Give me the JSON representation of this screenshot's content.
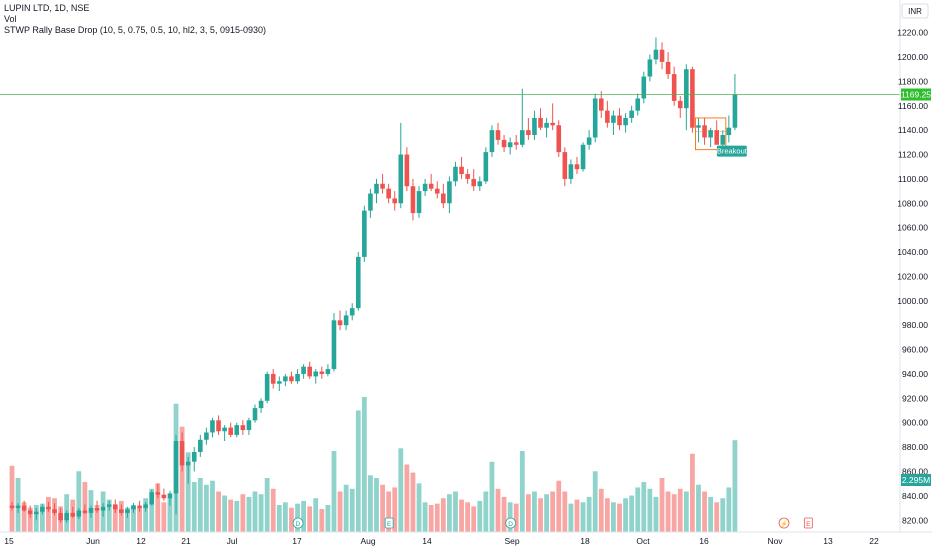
{
  "header": {
    "symbol_line": "LUPIN LTD, 1D, NSE",
    "volume_label": "Vol",
    "indicator_line": "STWP Rally Base Drop (10, 5, 0.75, 0.5, 10, hl2, 3, 5, 0915-0930)"
  },
  "currency_badge": "INR",
  "breakout_label": "Breakout",
  "event_icons": [
    "dividend-icon",
    "earnings-icon",
    "dividend-icon",
    "flash-icon",
    "earnings-icon"
  ],
  "colors": {
    "up": "#26a69a",
    "down": "#ef5350",
    "vol_up": "#8fd3cb",
    "vol_down": "#f7a6a4",
    "last_price_line": "#4caf50",
    "last_price_badge": "#2ebd2e",
    "volume_badge": "#26a69a",
    "base_box": "#ff6d00"
  },
  "chart_data": {
    "type": "candlestick",
    "title": "LUPIN LTD, 1D, NSE",
    "x_tick_labels": [
      "15",
      "Jun",
      "12",
      "21",
      "Jul",
      "17",
      "Aug",
      "14",
      "Sep",
      "18",
      "Oct",
      "16",
      "Nov",
      "13",
      "22"
    ],
    "y_axis": {
      "ticks": [
        820,
        840,
        860,
        880,
        900,
        920,
        940,
        960,
        980,
        1000,
        1020,
        1040,
        1060,
        1080,
        1100,
        1120,
        1140,
        1160,
        1180,
        1200,
        1220
      ],
      "tick_labels": [
        "820.00",
        "840.00",
        "860.00",
        "880.00",
        "900.00",
        "920.00",
        "940.00",
        "960.00",
        "980.00",
        "1000.00",
        "1020.00",
        "1040.00",
        "1060.00",
        "1080.00",
        "1100.00",
        "1120.00",
        "1140.00",
        "1160.00",
        "1180.00",
        "1200.00",
        "1220.00"
      ],
      "range": [
        812,
        1232
      ]
    },
    "last_price": 1169.25,
    "last_price_label": "1169.25",
    "last_volume_label": "2.295M",
    "candles": [
      [
        832,
        835,
        828,
        830,
        0.49
      ],
      [
        830,
        834,
        826,
        832,
        0.4
      ],
      [
        832,
        836,
        827,
        828,
        0.22
      ],
      [
        828,
        832,
        822,
        825,
        0.18
      ],
      [
        825,
        830,
        820,
        827,
        0.2
      ],
      [
        827,
        833,
        825,
        831,
        0.21
      ],
      [
        831,
        835,
        827,
        829,
        0.26
      ],
      [
        829,
        834,
        824,
        826,
        0.25
      ],
      [
        826,
        830,
        818,
        820,
        0.19
      ],
      [
        820,
        828,
        818,
        826,
        0.28
      ],
      [
        826,
        831,
        822,
        823,
        0.24
      ],
      [
        823,
        830,
        821,
        828,
        0.45
      ],
      [
        828,
        833,
        825,
        826,
        0.37
      ],
      [
        826,
        832,
        822,
        830,
        0.31
      ],
      [
        830,
        836,
        826,
        828,
        0.2
      ],
      [
        828,
        834,
        823,
        831,
        0.3
      ],
      [
        831,
        836,
        828,
        833,
        0.24
      ],
      [
        833,
        837,
        826,
        829,
        0.2
      ],
      [
        829,
        833,
        824,
        826,
        0.23
      ],
      [
        826,
        831,
        822,
        829,
        0.18
      ],
      [
        829,
        834,
        826,
        832,
        0.2
      ],
      [
        832,
        836,
        827,
        830,
        0.18
      ],
      [
        830,
        835,
        827,
        833,
        0.25
      ],
      [
        833,
        845,
        832,
        843,
        0.32
      ],
      [
        843,
        850,
        838,
        841,
        0.36
      ],
      [
        841,
        846,
        836,
        838,
        0.22
      ],
      [
        838,
        844,
        832,
        842,
        0.25
      ],
      [
        842,
        890,
        825,
        885,
        0.95
      ],
      [
        885,
        892,
        860,
        865,
        0.78
      ],
      [
        865,
        872,
        850,
        868,
        0.59
      ],
      [
        868,
        880,
        860,
        876,
        0.37
      ],
      [
        876,
        890,
        872,
        886,
        0.4
      ],
      [
        886,
        896,
        882,
        892,
        0.35
      ],
      [
        892,
        904,
        888,
        902,
        0.38
      ],
      [
        902,
        906,
        890,
        893,
        0.3
      ],
      [
        893,
        898,
        885,
        896,
        0.27
      ],
      [
        896,
        900,
        888,
        890,
        0.24
      ],
      [
        890,
        900,
        888,
        898,
        0.23
      ],
      [
        898,
        902,
        890,
        894,
        0.28
      ],
      [
        894,
        904,
        890,
        902,
        0.26
      ],
      [
        902,
        915,
        900,
        912,
        0.3
      ],
      [
        912,
        920,
        908,
        918,
        0.28
      ],
      [
        918,
        942,
        916,
        940,
        0.4
      ],
      [
        940,
        944,
        928,
        932,
        0.32
      ],
      [
        932,
        938,
        926,
        934,
        0.2
      ],
      [
        934,
        940,
        930,
        938,
        0.22
      ],
      [
        938,
        942,
        932,
        934,
        0.18
      ],
      [
        934,
        944,
        932,
        940,
        0.21
      ],
      [
        940,
        948,
        936,
        946,
        0.23
      ],
      [
        946,
        950,
        936,
        938,
        0.19
      ],
      [
        938,
        944,
        932,
        942,
        0.25
      ],
      [
        942,
        946,
        936,
        940,
        0.17
      ],
      [
        940,
        948,
        938,
        944,
        0.2
      ],
      [
        944,
        990,
        942,
        984,
        0.6
      ],
      [
        984,
        992,
        976,
        980,
        0.3
      ],
      [
        980,
        992,
        976,
        988,
        0.35
      ],
      [
        988,
        998,
        984,
        994,
        0.32
      ],
      [
        994,
        1040,
        992,
        1036,
        0.9
      ],
      [
        1036,
        1078,
        1032,
        1074,
        1.0
      ],
      [
        1074,
        1092,
        1068,
        1088,
        0.42
      ],
      [
        1088,
        1100,
        1080,
        1096,
        0.4
      ],
      [
        1096,
        1104,
        1088,
        1092,
        0.35
      ],
      [
        1092,
        1096,
        1080,
        1084,
        0.3
      ],
      [
        1084,
        1090,
        1074,
        1080,
        0.33
      ],
      [
        1080,
        1146,
        1076,
        1120,
        0.62
      ],
      [
        1120,
        1126,
        1090,
        1094,
        0.5
      ],
      [
        1094,
        1100,
        1066,
        1072,
        0.44
      ],
      [
        1072,
        1094,
        1068,
        1090,
        0.36
      ],
      [
        1090,
        1100,
        1086,
        1096,
        0.22
      ],
      [
        1096,
        1104,
        1090,
        1092,
        0.2
      ],
      [
        1092,
        1098,
        1084,
        1088,
        0.21
      ],
      [
        1088,
        1096,
        1076,
        1080,
        0.25
      ],
      [
        1080,
        1102,
        1072,
        1098,
        0.28
      ],
      [
        1098,
        1114,
        1094,
        1110,
        0.3
      ],
      [
        1110,
        1118,
        1100,
        1104,
        0.24
      ],
      [
        1104,
        1108,
        1096,
        1100,
        0.22
      ],
      [
        1100,
        1108,
        1090,
        1094,
        0.19
      ],
      [
        1094,
        1102,
        1090,
        1098,
        0.23
      ],
      [
        1098,
        1126,
        1096,
        1122,
        0.3
      ],
      [
        1122,
        1144,
        1118,
        1140,
        0.52
      ],
      [
        1140,
        1146,
        1128,
        1132,
        0.32
      ],
      [
        1132,
        1136,
        1122,
        1126,
        0.26
      ],
      [
        1126,
        1134,
        1120,
        1130,
        0.22
      ],
      [
        1130,
        1136,
        1124,
        1128,
        0.21
      ],
      [
        1128,
        1174,
        1126,
        1140,
        0.6
      ],
      [
        1140,
        1150,
        1132,
        1136,
        0.28
      ],
      [
        1136,
        1156,
        1132,
        1150,
        0.3
      ],
      [
        1150,
        1158,
        1140,
        1142,
        0.25
      ],
      [
        1142,
        1150,
        1134,
        1146,
        0.28
      ],
      [
        1146,
        1162,
        1140,
        1144,
        0.3
      ],
      [
        1144,
        1148,
        1118,
        1122,
        0.38
      ],
      [
        1122,
        1126,
        1094,
        1100,
        0.3
      ],
      [
        1100,
        1116,
        1096,
        1112,
        0.21
      ],
      [
        1112,
        1118,
        1104,
        1108,
        0.24
      ],
      [
        1108,
        1130,
        1106,
        1128,
        0.22
      ],
      [
        1128,
        1140,
        1124,
        1134,
        0.26
      ],
      [
        1134,
        1170,
        1130,
        1166,
        0.45
      ],
      [
        1166,
        1172,
        1150,
        1156,
        0.32
      ],
      [
        1156,
        1164,
        1142,
        1146,
        0.25
      ],
      [
        1146,
        1156,
        1136,
        1152,
        0.22
      ],
      [
        1152,
        1158,
        1140,
        1144,
        0.21
      ],
      [
        1144,
        1154,
        1138,
        1150,
        0.25
      ],
      [
        1150,
        1160,
        1146,
        1156,
        0.27
      ],
      [
        1156,
        1170,
        1152,
        1166,
        0.33
      ],
      [
        1166,
        1188,
        1162,
        1184,
        0.37
      ],
      [
        1184,
        1202,
        1180,
        1198,
        0.32
      ],
      [
        1198,
        1216,
        1194,
        1206,
        0.26
      ],
      [
        1206,
        1212,
        1190,
        1196,
        0.4
      ],
      [
        1196,
        1204,
        1182,
        1186,
        0.3
      ],
      [
        1186,
        1192,
        1160,
        1164,
        0.28
      ],
      [
        1164,
        1168,
        1150,
        1158,
        0.32
      ],
      [
        1158,
        1194,
        1140,
        1190,
        0.3
      ],
      [
        1190,
        1192,
        1138,
        1142,
        0.58
      ],
      [
        1142,
        1150,
        1130,
        1144,
        0.35
      ],
      [
        1144,
        1150,
        1128,
        1134,
        0.3
      ],
      [
        1134,
        1142,
        1126,
        1140,
        0.26
      ],
      [
        1140,
        1148,
        1130,
        1128,
        0.22
      ],
      [
        1128,
        1140,
        1124,
        1136,
        0.25
      ],
      [
        1136,
        1152,
        1130,
        1142,
        0.33
      ],
      [
        1142,
        1186,
        1140,
        1169.25,
        0.68
      ]
    ],
    "base_zone": {
      "from_index": 113,
      "to_index": 118,
      "top": 1150,
      "bottom": 1124
    },
    "breakout_index": 118
  }
}
